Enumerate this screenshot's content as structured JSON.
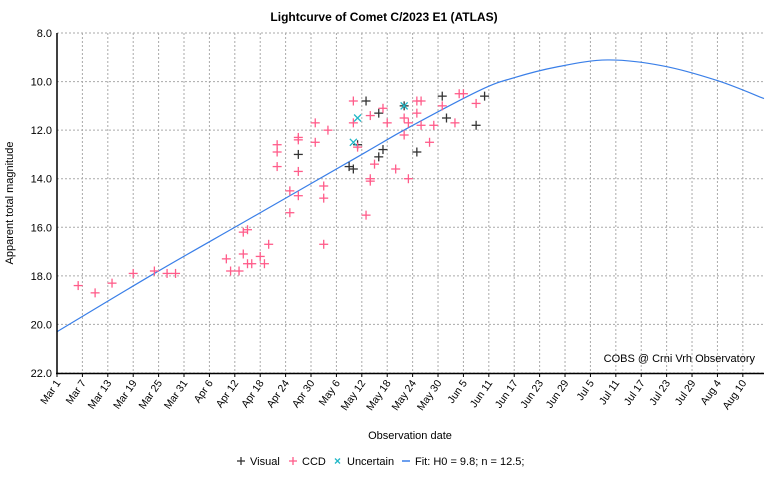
{
  "chart_data": {
    "type": "scatter",
    "title": "Lightcurve of Comet C/2023 E1 (ATLAS)",
    "xlabel": "Observation date",
    "ylabel": "Apparent total magnitude",
    "year": 2023,
    "xlim": [
      "2023-03-01",
      "2023-08-15"
    ],
    "ylim": [
      22.0,
      8.0
    ],
    "y_inverted": true,
    "y_ticks": [
      "8.0",
      "10.0",
      "12.0",
      "14.0",
      "16.0",
      "18.0",
      "20.0",
      "22.0"
    ],
    "x_ticks": [
      "Mar 1",
      "Mar 7",
      "Mar 13",
      "Mar 19",
      "Mar 25",
      "Mar 31",
      "Apr 6",
      "Apr 12",
      "Apr 18",
      "Apr 24",
      "Apr 30",
      "May 6",
      "May 12",
      "May 18",
      "May 24",
      "May 30",
      "Jun 5",
      "Jun 11",
      "Jun 17",
      "Jun 23",
      "Jun 29",
      "Jul 5",
      "Jul 11",
      "Jul 17",
      "Jul 23",
      "Jul 29",
      "Aug 4",
      "Aug 10"
    ],
    "grid": true,
    "legend_position": "bottom",
    "annotation": "COBS @ Crni Vrh Observatory",
    "series": [
      {
        "name": "Visual",
        "marker": "plus",
        "color": "#333333",
        "points": [
          [
            "2023-04-27",
            13.0
          ],
          [
            "2023-05-09",
            13.5
          ],
          [
            "2023-05-10",
            13.6
          ],
          [
            "2023-05-11",
            12.6
          ],
          [
            "2023-05-13",
            10.8
          ],
          [
            "2023-05-16",
            11.3
          ],
          [
            "2023-05-16",
            13.1
          ],
          [
            "2023-05-17",
            12.8
          ],
          [
            "2023-05-22",
            11.0
          ],
          [
            "2023-05-25",
            12.9
          ],
          [
            "2023-05-31",
            10.6
          ],
          [
            "2023-06-01",
            11.5
          ],
          [
            "2023-06-08",
            11.8
          ],
          [
            "2023-06-10",
            10.6
          ]
        ]
      },
      {
        "name": "CCD",
        "marker": "plus",
        "color": "#ff5c8a",
        "points": [
          [
            "2023-03-06",
            18.4
          ],
          [
            "2023-03-10",
            18.7
          ],
          [
            "2023-03-14",
            18.3
          ],
          [
            "2023-03-19",
            17.9
          ],
          [
            "2023-03-24",
            17.8
          ],
          [
            "2023-03-27",
            17.9
          ],
          [
            "2023-03-29",
            17.9
          ],
          [
            "2023-04-10",
            17.3
          ],
          [
            "2023-04-11",
            17.8
          ],
          [
            "2023-04-13",
            17.8
          ],
          [
            "2023-04-14",
            17.1
          ],
          [
            "2023-04-14",
            16.2
          ],
          [
            "2023-04-15",
            16.1
          ],
          [
            "2023-04-15",
            17.5
          ],
          [
            "2023-04-16",
            17.5
          ],
          [
            "2023-04-18",
            17.2
          ],
          [
            "2023-04-19",
            17.5
          ],
          [
            "2023-04-20",
            16.7
          ],
          [
            "2023-04-22",
            12.6
          ],
          [
            "2023-04-22",
            12.9
          ],
          [
            "2023-04-22",
            13.5
          ],
          [
            "2023-04-25",
            15.4
          ],
          [
            "2023-04-25",
            14.5
          ],
          [
            "2023-04-27",
            12.3
          ],
          [
            "2023-04-27",
            12.4
          ],
          [
            "2023-04-27",
            13.7
          ],
          [
            "2023-04-27",
            14.7
          ],
          [
            "2023-05-01",
            11.7
          ],
          [
            "2023-05-01",
            12.5
          ],
          [
            "2023-05-03",
            14.3
          ],
          [
            "2023-05-03",
            14.8
          ],
          [
            "2023-05-03",
            16.7
          ],
          [
            "2023-05-04",
            12.0
          ],
          [
            "2023-05-10",
            10.8
          ],
          [
            "2023-05-10",
            11.7
          ],
          [
            "2023-05-11",
            12.7
          ],
          [
            "2023-05-13",
            15.5
          ],
          [
            "2023-05-14",
            11.4
          ],
          [
            "2023-05-14",
            14.0
          ],
          [
            "2023-05-14",
            14.1
          ],
          [
            "2023-05-15",
            13.4
          ],
          [
            "2023-05-17",
            11.1
          ],
          [
            "2023-05-18",
            11.7
          ],
          [
            "2023-05-20",
            13.6
          ],
          [
            "2023-05-22",
            11.5
          ],
          [
            "2023-05-22",
            12.2
          ],
          [
            "2023-05-23",
            14.0
          ],
          [
            "2023-05-23",
            11.7
          ],
          [
            "2023-05-25",
            10.8
          ],
          [
            "2023-05-25",
            11.3
          ],
          [
            "2023-05-26",
            10.8
          ],
          [
            "2023-05-26",
            11.8
          ],
          [
            "2023-05-28",
            12.5
          ],
          [
            "2023-05-29",
            11.8
          ],
          [
            "2023-05-31",
            11.0
          ],
          [
            "2023-06-03",
            11.7
          ],
          [
            "2023-06-04",
            10.5
          ],
          [
            "2023-06-05",
            10.5
          ],
          [
            "2023-06-08",
            10.9
          ]
        ]
      },
      {
        "name": "Uncertain",
        "marker": "cross",
        "color": "#22b8c8",
        "points": [
          [
            "2023-05-10",
            12.5
          ],
          [
            "2023-05-11",
            11.5
          ],
          [
            "2023-05-22",
            11.0
          ]
        ]
      },
      {
        "name": "Fit: H0 = 9.8; n = 12.5;",
        "marker": "line",
        "color": "#3a7fe8",
        "points": [
          [
            "2023-03-01",
            20.3
          ],
          [
            "2023-03-24",
            17.9
          ],
          [
            "2023-04-15",
            15.7
          ],
          [
            "2023-05-12",
            13.0
          ],
          [
            "2023-05-23",
            11.9
          ],
          [
            "2023-06-09",
            10.35
          ],
          [
            "2023-06-17",
            9.84
          ],
          [
            "2023-06-27",
            9.4
          ],
          [
            "2023-07-09",
            9.11
          ],
          [
            "2023-07-22",
            9.35
          ],
          [
            "2023-08-04",
            9.96
          ],
          [
            "2023-08-15",
            10.7
          ]
        ]
      }
    ]
  }
}
